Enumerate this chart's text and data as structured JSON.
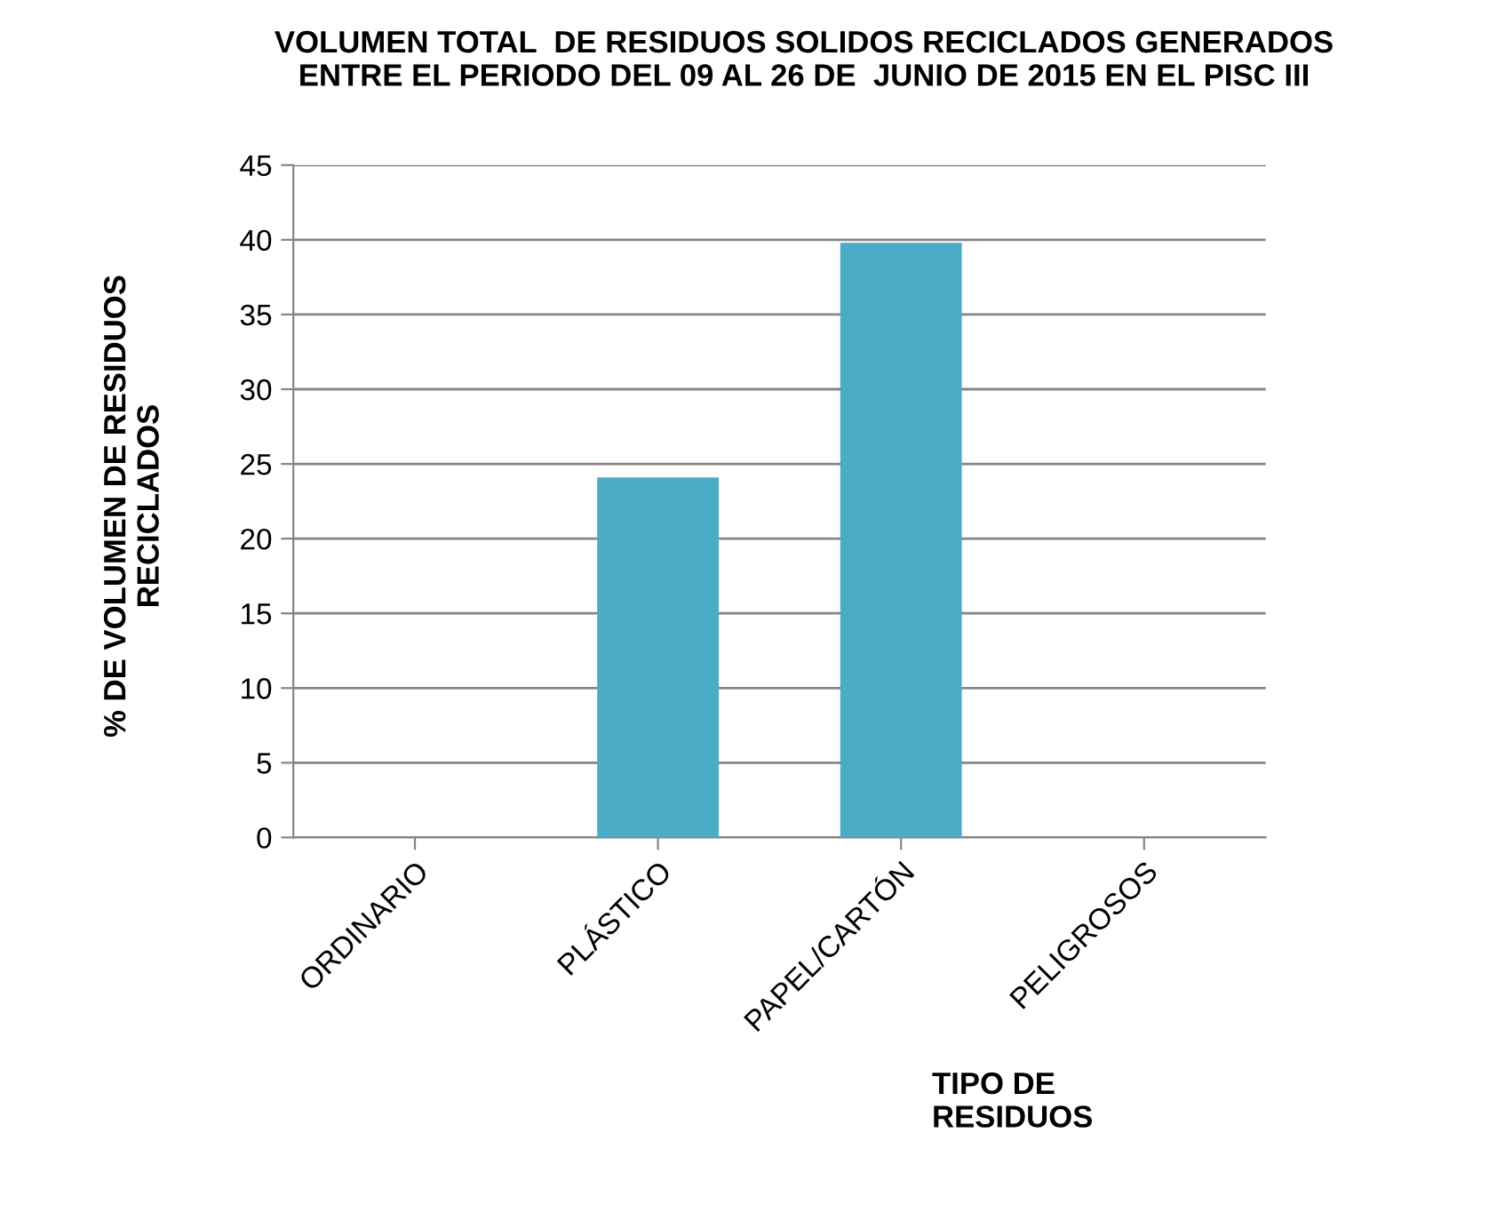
{
  "chart_data": {
    "type": "bar",
    "title": "VOLUMEN TOTAL  DE RESIDUOS SOLIDOS RECICLADOS GENERADOS\nENTRE EL PERIODO DEL 09 AL 26 DE  JUNIO DE 2015 EN EL PISC III",
    "xlabel": "TIPO DE\nRESIDUOS",
    "ylabel": "% DE VOLUMEN DE RESIDUOS\nRECICLADOS",
    "categories": [
      "ORDINARIO",
      "PLÁSTICO",
      "PAPEL/CARTÓN",
      "PELIGROSOS"
    ],
    "values": [
      0,
      24.1,
      39.8,
      0
    ],
    "color": "#4bacc6",
    "ylim": [
      0,
      45
    ],
    "yticks": [
      0,
      5,
      10,
      15,
      20,
      25,
      30,
      35,
      40,
      45
    ],
    "grid": "y",
    "legend": false
  }
}
